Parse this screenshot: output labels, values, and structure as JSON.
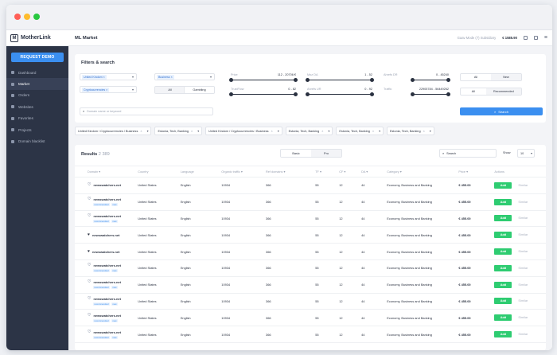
{
  "brand": {
    "name": "MotherLink",
    "mark": "M"
  },
  "sidebar": {
    "cta": "REQUEST DEMO",
    "items": [
      {
        "label": "Dashboard",
        "icon": "grid-icon"
      },
      {
        "label": "Market",
        "icon": "cart-icon",
        "active": true
      },
      {
        "label": "Orders",
        "icon": "list-icon"
      },
      {
        "label": "Websites",
        "icon": "globe-icon"
      },
      {
        "label": "Favorites",
        "icon": "heart-icon"
      },
      {
        "label": "Projects",
        "icon": "folder-icon"
      },
      {
        "label": "Domain blacklist",
        "icon": "block-icon"
      }
    ]
  },
  "topbar": {
    "title": "ML Market",
    "faded": "Gaav Mode (7) Subsidiary",
    "balance": "€ 1585.90"
  },
  "filters": {
    "title": "Filters & search",
    "country_chip": "United Kindom",
    "category_chip": "Cryptocurrencies",
    "type_chip": "Business",
    "toggle1": {
      "a": "All",
      "b": "Gambling"
    },
    "toggle2": {
      "a": "All",
      "b": "New"
    },
    "toggle3": {
      "a": "All",
      "b": "Recommended"
    },
    "ranges": [
      {
        "label": "Price",
        "value": "112 - 20706 €"
      },
      {
        "label": "Moz DA",
        "value": "1 - 52"
      },
      {
        "label": "Ahrefs DR",
        "value": "0 - 45240"
      },
      {
        "label": "TrustFlow",
        "value": "0 - 82"
      },
      {
        "label": "Ahrefs UR",
        "value": "0 - 92"
      },
      {
        "label": "Traffic",
        "value": "22905784 - 56449262"
      }
    ],
    "search_placeholder": "Domain name or keyword",
    "search_button": "Search"
  },
  "applied": [
    "United Kindom / Cryptocurrencies / Business",
    "Estonia, Tech, Banking",
    "United Kindom / Cryptocurrencies / Business",
    "Estonia, Tech, Banking",
    "Estonia, Tech, Banking",
    "Estonia, Tech, Banking"
  ],
  "results": {
    "title": "Results",
    "count": "2 389",
    "tabs": {
      "a": "Basic",
      "b": "Pro"
    },
    "search": "Search",
    "show_label": "Show",
    "show_value": "10",
    "headers": [
      "Domain",
      "Country",
      "Language",
      "Organic traffic",
      "Ref domains",
      "TF",
      "CF",
      "DA",
      "Category",
      "Price",
      "Actions"
    ],
    "row": {
      "domain": "newswatchers.net",
      "tag1": "recommended",
      "tag2": "new",
      "country": "United States",
      "language": "English",
      "traffic": "10934",
      "ref": "366",
      "tf": "55",
      "cf": "12",
      "da": "44",
      "category": "Economy, Business and Banking",
      "price": "€ 455.00",
      "add": "Add",
      "similar": "Similar"
    },
    "favorites": [
      false,
      false,
      false,
      true,
      true,
      false,
      false,
      false,
      false,
      false
    ]
  }
}
